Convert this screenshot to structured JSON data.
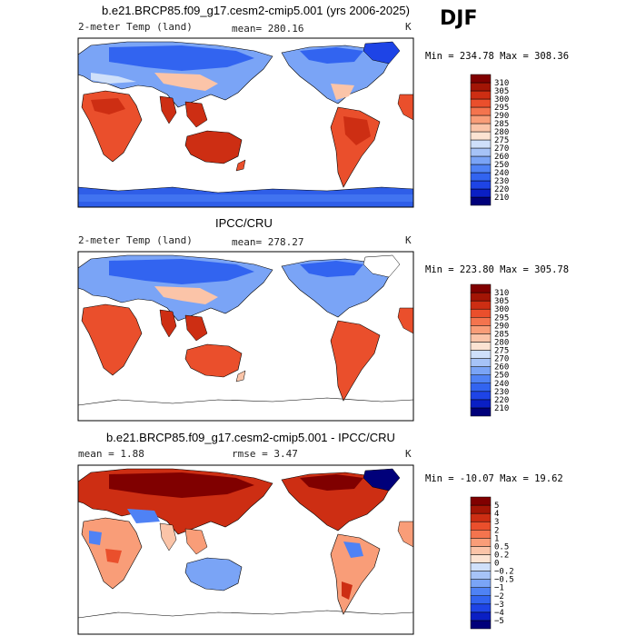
{
  "season": "DJF",
  "panels": [
    {
      "title": "b.e21.BRCP85.f09_g17.cesm2-cmip5.001 (yrs 2006-2025)",
      "left_label": "2-meter Temp (land)",
      "stat_label": "mean= 280.16",
      "unit": "K",
      "minmax": "Min = 234.78 Max = 308.36"
    },
    {
      "title": "IPCC/CRU",
      "left_label": "2-meter Temp (land)",
      "stat_label": "mean= 278.27",
      "unit": "K",
      "minmax": "Min = 223.80 Max = 305.78"
    },
    {
      "title": "b.e21.BRCP85.f09_g17.cesm2-cmip5.001 - IPCC/CRU",
      "left_label": "mean =   1.88",
      "stat_label": "rmse =   3.47",
      "unit": "K",
      "minmax": "Min = -10.07 Max =   19.62"
    }
  ],
  "chart_data": [
    {
      "type": "heatmap",
      "title": "b.e21.BRCP85.f09_g17.cesm2-cmip5.001 (yrs 2006-2025)",
      "variable": "2-meter Temp (land)",
      "mean": 280.16,
      "min": 234.78,
      "max": 308.36,
      "unit": "K",
      "colorbar": {
        "levels": [
          210,
          220,
          230,
          240,
          250,
          260,
          270,
          275,
          280,
          285,
          290,
          295,
          300,
          305,
          310
        ],
        "labels": [
          "210",
          "220",
          "230",
          "240",
          "250",
          "260",
          "270",
          "275",
          "280",
          "285",
          "290",
          "295",
          "300",
          "305",
          "310"
        ],
        "colors": [
          "#00007a",
          "#0a1fc4",
          "#1e44e6",
          "#3264f0",
          "#4f82f5",
          "#7aa4f6",
          "#a6c3f7",
          "#cfe0fa",
          "#fce3d2",
          "#fbc4a8",
          "#f99d78",
          "#f4744e",
          "#ea4f2c",
          "#cd2e13",
          "#a31505",
          "#800000"
        ]
      }
    },
    {
      "type": "heatmap",
      "title": "IPCC/CRU",
      "variable": "2-meter Temp (land)",
      "mean": 278.27,
      "min": 223.8,
      "max": 305.78,
      "unit": "K",
      "colorbar": {
        "levels": [
          210,
          220,
          230,
          240,
          250,
          260,
          270,
          275,
          280,
          285,
          290,
          295,
          300,
          305,
          310
        ],
        "labels": [
          "210",
          "220",
          "230",
          "240",
          "250",
          "260",
          "270",
          "275",
          "280",
          "285",
          "290",
          "295",
          "300",
          "305",
          "310"
        ],
        "colors": [
          "#00007a",
          "#0a1fc4",
          "#1e44e6",
          "#3264f0",
          "#4f82f5",
          "#7aa4f6",
          "#a6c3f7",
          "#cfe0fa",
          "#fce3d2",
          "#fbc4a8",
          "#f99d78",
          "#f4744e",
          "#ea4f2c",
          "#cd2e13",
          "#a31505",
          "#800000"
        ]
      }
    },
    {
      "type": "heatmap",
      "title": "b.e21.BRCP85.f09_g17.cesm2-cmip5.001 - IPCC/CRU",
      "mean": 1.88,
      "rmse": 3.47,
      "min": -10.07,
      "max": 19.62,
      "unit": "K",
      "colorbar": {
        "levels": [
          -5,
          -4,
          -3,
          -2,
          -1,
          -0.5,
          -0.2,
          0,
          0.2,
          0.5,
          1,
          2,
          3,
          4,
          5
        ],
        "labels": [
          "−5",
          "−4",
          "−3",
          "−2",
          "−1",
          "−0.5",
          "−0.2",
          "0",
          "0.2",
          "0.5",
          "1",
          "2",
          "3",
          "4",
          "5"
        ],
        "colors": [
          "#00007a",
          "#0a1fc4",
          "#1e44e6",
          "#3264f0",
          "#4f82f5",
          "#7aa4f6",
          "#a6c3f7",
          "#cfe0fa",
          "#fce3d2",
          "#fbc4a8",
          "#f99d78",
          "#f4744e",
          "#ea4f2c",
          "#cd2e13",
          "#a31505",
          "#800000"
        ]
      }
    }
  ]
}
